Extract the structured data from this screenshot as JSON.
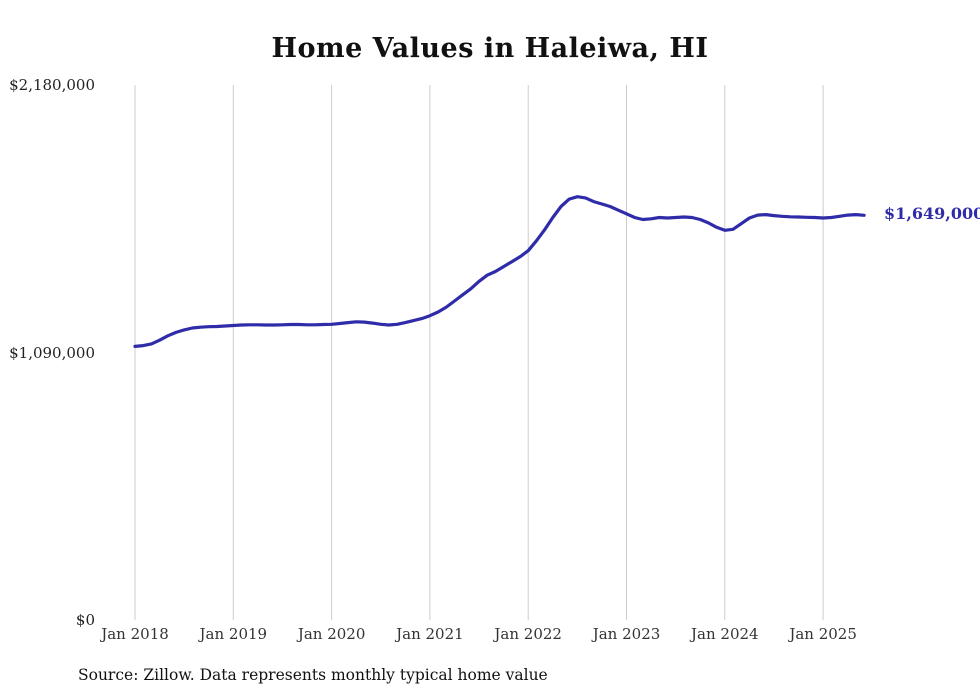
{
  "chart": {
    "title": "Home Values in Haleiwa, HI",
    "source_note": "Source: Zillow. Data represents monthly typical home value",
    "line_color": "#2e2ca8",
    "grid_color": "#cccccc"
  },
  "chart_data": {
    "type": "line",
    "title": "Home Values in Haleiwa, HI",
    "xlabel": "",
    "ylabel": "",
    "x_start": "2018-01",
    "x_interval": "month",
    "ylim": [
      0,
      2180000
    ],
    "grid": "vertical-only",
    "legend_position": "none",
    "y_ticks": [
      {
        "value": 0,
        "label": "$0"
      },
      {
        "value": 1090000,
        "label": "$1,090,000"
      },
      {
        "value": 2180000,
        "label": "$2,180,000"
      }
    ],
    "x_ticks": [
      {
        "monthIndex": 0,
        "label": "Jan 2018"
      },
      {
        "monthIndex": 12,
        "label": "Jan 2019"
      },
      {
        "monthIndex": 24,
        "label": "Jan 2020"
      },
      {
        "monthIndex": 36,
        "label": "Jan 2021"
      },
      {
        "monthIndex": 48,
        "label": "Jan 2022"
      },
      {
        "monthIndex": 60,
        "label": "Jan 2023"
      },
      {
        "monthIndex": 72,
        "label": "Jan 2024"
      },
      {
        "monthIndex": 84,
        "label": "Jan 2025"
      }
    ],
    "series": [
      {
        "name": "Typical home value",
        "values": [
          1115000,
          1118000,
          1125000,
          1140000,
          1158000,
          1172000,
          1182000,
          1190000,
          1193000,
          1195000,
          1196000,
          1198000,
          1200000,
          1202000,
          1203000,
          1203000,
          1202000,
          1202000,
          1203000,
          1204000,
          1204000,
          1203000,
          1203000,
          1204000,
          1205000,
          1208000,
          1212000,
          1215000,
          1214000,
          1210000,
          1205000,
          1202000,
          1205000,
          1212000,
          1220000,
          1228000,
          1240000,
          1255000,
          1275000,
          1300000,
          1325000,
          1350000,
          1380000,
          1405000,
          1420000,
          1440000,
          1460000,
          1480000,
          1505000,
          1545000,
          1590000,
          1640000,
          1685000,
          1715000,
          1725000,
          1720000,
          1705000,
          1695000,
          1685000,
          1670000,
          1655000,
          1640000,
          1632000,
          1635000,
          1640000,
          1638000,
          1640000,
          1642000,
          1640000,
          1632000,
          1618000,
          1600000,
          1588000,
          1592000,
          1615000,
          1638000,
          1650000,
          1652000,
          1648000,
          1645000,
          1643000,
          1642000,
          1641000,
          1640000,
          1638000,
          1640000,
          1645000,
          1650000,
          1652000,
          1649000
        ]
      }
    ],
    "annotation": {
      "text": "$1,649,000",
      "value": 1649000
    }
  }
}
